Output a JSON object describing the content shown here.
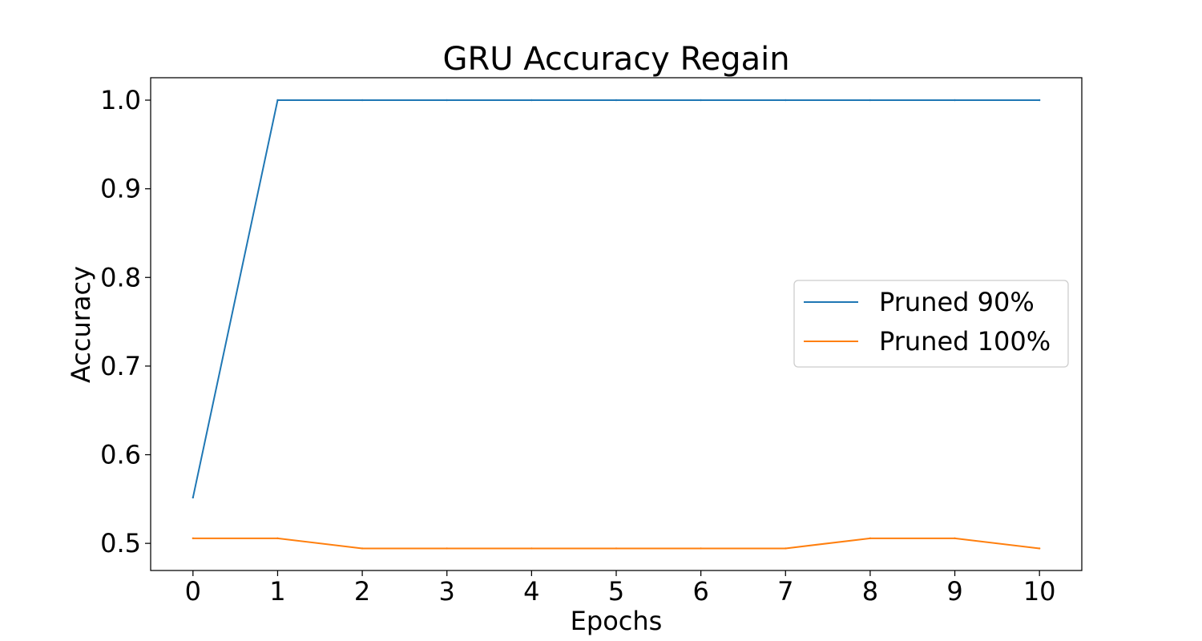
{
  "chart_data": {
    "type": "line",
    "title": "GRU Accuracy Regain",
    "xlabel": "Epochs",
    "ylabel": "Accuracy",
    "x": [
      0,
      1,
      2,
      3,
      4,
      5,
      6,
      7,
      8,
      9,
      10
    ],
    "xticks": [
      "0",
      "1",
      "2",
      "3",
      "4",
      "5",
      "6",
      "7",
      "8",
      "9",
      "10"
    ],
    "yticks": [
      "0.5",
      "0.6",
      "0.7",
      "0.8",
      "0.9",
      "1.0"
    ],
    "ytick_values": [
      0.5,
      0.6,
      0.7,
      0.8,
      0.9,
      1.0
    ],
    "xlim": [
      -0.5,
      10.5
    ],
    "ylim": [
      0.4694,
      1.0253
    ],
    "grid": false,
    "legend_position": "center-right",
    "series": [
      {
        "name": "Pruned 90%",
        "color": "#1f77b4",
        "values": [
          0.5517,
          1.0,
          1.0,
          1.0,
          1.0,
          1.0,
          1.0,
          1.0,
          1.0,
          1.0,
          1.0
        ]
      },
      {
        "name": "Pruned 100%",
        "color": "#ff7f0e",
        "values": [
          0.5057,
          0.5057,
          0.4943,
          0.4943,
          0.4943,
          0.4943,
          0.4943,
          0.4943,
          0.5057,
          0.5057,
          0.4943
        ]
      }
    ]
  }
}
